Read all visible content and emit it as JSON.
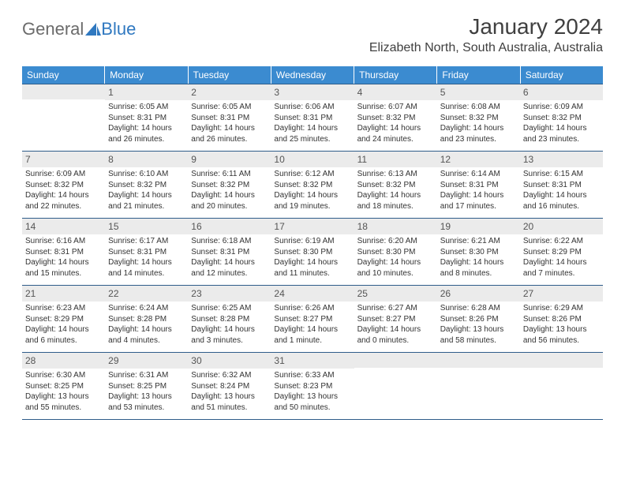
{
  "brand": {
    "part1": "General",
    "part2": "Blue"
  },
  "title": "January 2024",
  "location": "Elizabeth North, South Australia, Australia",
  "colors": {
    "header_bg": "#3b8bd0",
    "header_text": "#ffffff",
    "daynum_bg": "#ebebeb",
    "border": "#2f5d8a",
    "brand_gray": "#6b6b6b",
    "brand_blue": "#2f78c0"
  },
  "weekdays": [
    "Sunday",
    "Monday",
    "Tuesday",
    "Wednesday",
    "Thursday",
    "Friday",
    "Saturday"
  ],
  "weeks": [
    [
      {
        "n": "",
        "sr": "",
        "ss": "",
        "dl": ""
      },
      {
        "n": "1",
        "sr": "Sunrise: 6:05 AM",
        "ss": "Sunset: 8:31 PM",
        "dl": "Daylight: 14 hours and 26 minutes."
      },
      {
        "n": "2",
        "sr": "Sunrise: 6:05 AM",
        "ss": "Sunset: 8:31 PM",
        "dl": "Daylight: 14 hours and 26 minutes."
      },
      {
        "n": "3",
        "sr": "Sunrise: 6:06 AM",
        "ss": "Sunset: 8:31 PM",
        "dl": "Daylight: 14 hours and 25 minutes."
      },
      {
        "n": "4",
        "sr": "Sunrise: 6:07 AM",
        "ss": "Sunset: 8:32 PM",
        "dl": "Daylight: 14 hours and 24 minutes."
      },
      {
        "n": "5",
        "sr": "Sunrise: 6:08 AM",
        "ss": "Sunset: 8:32 PM",
        "dl": "Daylight: 14 hours and 23 minutes."
      },
      {
        "n": "6",
        "sr": "Sunrise: 6:09 AM",
        "ss": "Sunset: 8:32 PM",
        "dl": "Daylight: 14 hours and 23 minutes."
      }
    ],
    [
      {
        "n": "7",
        "sr": "Sunrise: 6:09 AM",
        "ss": "Sunset: 8:32 PM",
        "dl": "Daylight: 14 hours and 22 minutes."
      },
      {
        "n": "8",
        "sr": "Sunrise: 6:10 AM",
        "ss": "Sunset: 8:32 PM",
        "dl": "Daylight: 14 hours and 21 minutes."
      },
      {
        "n": "9",
        "sr": "Sunrise: 6:11 AM",
        "ss": "Sunset: 8:32 PM",
        "dl": "Daylight: 14 hours and 20 minutes."
      },
      {
        "n": "10",
        "sr": "Sunrise: 6:12 AM",
        "ss": "Sunset: 8:32 PM",
        "dl": "Daylight: 14 hours and 19 minutes."
      },
      {
        "n": "11",
        "sr": "Sunrise: 6:13 AM",
        "ss": "Sunset: 8:32 PM",
        "dl": "Daylight: 14 hours and 18 minutes."
      },
      {
        "n": "12",
        "sr": "Sunrise: 6:14 AM",
        "ss": "Sunset: 8:31 PM",
        "dl": "Daylight: 14 hours and 17 minutes."
      },
      {
        "n": "13",
        "sr": "Sunrise: 6:15 AM",
        "ss": "Sunset: 8:31 PM",
        "dl": "Daylight: 14 hours and 16 minutes."
      }
    ],
    [
      {
        "n": "14",
        "sr": "Sunrise: 6:16 AM",
        "ss": "Sunset: 8:31 PM",
        "dl": "Daylight: 14 hours and 15 minutes."
      },
      {
        "n": "15",
        "sr": "Sunrise: 6:17 AM",
        "ss": "Sunset: 8:31 PM",
        "dl": "Daylight: 14 hours and 14 minutes."
      },
      {
        "n": "16",
        "sr": "Sunrise: 6:18 AM",
        "ss": "Sunset: 8:31 PM",
        "dl": "Daylight: 14 hours and 12 minutes."
      },
      {
        "n": "17",
        "sr": "Sunrise: 6:19 AM",
        "ss": "Sunset: 8:30 PM",
        "dl": "Daylight: 14 hours and 11 minutes."
      },
      {
        "n": "18",
        "sr": "Sunrise: 6:20 AM",
        "ss": "Sunset: 8:30 PM",
        "dl": "Daylight: 14 hours and 10 minutes."
      },
      {
        "n": "19",
        "sr": "Sunrise: 6:21 AM",
        "ss": "Sunset: 8:30 PM",
        "dl": "Daylight: 14 hours and 8 minutes."
      },
      {
        "n": "20",
        "sr": "Sunrise: 6:22 AM",
        "ss": "Sunset: 8:29 PM",
        "dl": "Daylight: 14 hours and 7 minutes."
      }
    ],
    [
      {
        "n": "21",
        "sr": "Sunrise: 6:23 AM",
        "ss": "Sunset: 8:29 PM",
        "dl": "Daylight: 14 hours and 6 minutes."
      },
      {
        "n": "22",
        "sr": "Sunrise: 6:24 AM",
        "ss": "Sunset: 8:28 PM",
        "dl": "Daylight: 14 hours and 4 minutes."
      },
      {
        "n": "23",
        "sr": "Sunrise: 6:25 AM",
        "ss": "Sunset: 8:28 PM",
        "dl": "Daylight: 14 hours and 3 minutes."
      },
      {
        "n": "24",
        "sr": "Sunrise: 6:26 AM",
        "ss": "Sunset: 8:27 PM",
        "dl": "Daylight: 14 hours and 1 minute."
      },
      {
        "n": "25",
        "sr": "Sunrise: 6:27 AM",
        "ss": "Sunset: 8:27 PM",
        "dl": "Daylight: 14 hours and 0 minutes."
      },
      {
        "n": "26",
        "sr": "Sunrise: 6:28 AM",
        "ss": "Sunset: 8:26 PM",
        "dl": "Daylight: 13 hours and 58 minutes."
      },
      {
        "n": "27",
        "sr": "Sunrise: 6:29 AM",
        "ss": "Sunset: 8:26 PM",
        "dl": "Daylight: 13 hours and 56 minutes."
      }
    ],
    [
      {
        "n": "28",
        "sr": "Sunrise: 6:30 AM",
        "ss": "Sunset: 8:25 PM",
        "dl": "Daylight: 13 hours and 55 minutes."
      },
      {
        "n": "29",
        "sr": "Sunrise: 6:31 AM",
        "ss": "Sunset: 8:25 PM",
        "dl": "Daylight: 13 hours and 53 minutes."
      },
      {
        "n": "30",
        "sr": "Sunrise: 6:32 AM",
        "ss": "Sunset: 8:24 PM",
        "dl": "Daylight: 13 hours and 51 minutes."
      },
      {
        "n": "31",
        "sr": "Sunrise: 6:33 AM",
        "ss": "Sunset: 8:23 PM",
        "dl": "Daylight: 13 hours and 50 minutes."
      },
      {
        "n": "",
        "sr": "",
        "ss": "",
        "dl": ""
      },
      {
        "n": "",
        "sr": "",
        "ss": "",
        "dl": ""
      },
      {
        "n": "",
        "sr": "",
        "ss": "",
        "dl": ""
      }
    ]
  ]
}
